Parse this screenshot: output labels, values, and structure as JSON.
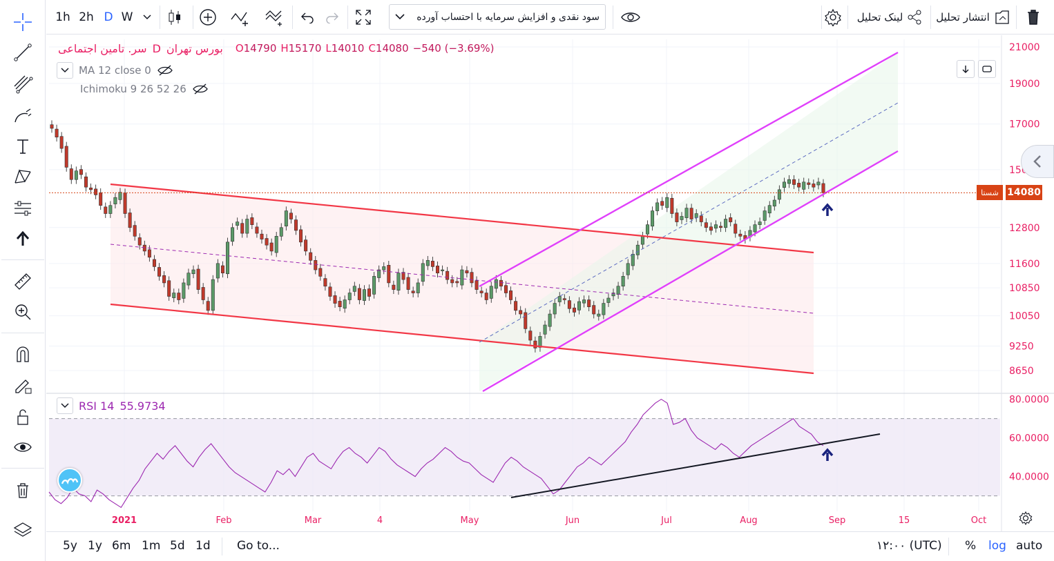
{
  "top_toolbar": {
    "intervals": [
      "1h",
      "2h",
      "D",
      "W"
    ],
    "active_interval": "D",
    "study_select": "سود نقدی و افزایش سرمایه با احتساب آورده",
    "publish": "انتشار تحلیل",
    "share_link": "لینک تحلیل"
  },
  "legend": {
    "symbol": "سر. تامین اجتماعی",
    "interval": "D",
    "exchange": "بورس تهران",
    "open_label": "O",
    "open": "14790",
    "high_label": "H",
    "high": "15170",
    "low_label": "L",
    "low": "14010",
    "close_label": "C",
    "close": "14080",
    "change": "−540 (−3.69%)"
  },
  "indicators": {
    "ma": "MA 12 close 0",
    "ichimoku": "Ichimoku 9 26 52 26",
    "rsi_name": "RSI 14",
    "rsi_value": "55.9734"
  },
  "price_badge": {
    "symbol": "شستا",
    "last": "14080"
  },
  "bottom_toolbar": {
    "ranges": [
      "5y",
      "1y",
      "6m",
      "1m",
      "5d",
      "1d"
    ],
    "goto": "Go to...",
    "timezone": "۱۲:۰۰ (UTC)",
    "percent": "%",
    "log": "log",
    "auto": "auto"
  },
  "colors": {
    "up": "#5b9a68",
    "down": "#c0392b",
    "channel_down": "#f23645",
    "channel_up": "#e040fb",
    "rsi": "#9c27b0",
    "accent": "#2962ff"
  },
  "chart_data": {
    "type": "candlestick",
    "scale": "log",
    "y_ticks": [
      21000,
      19000,
      17000,
      15000,
      12800,
      11600,
      10850,
      10050,
      9250,
      8650
    ],
    "x_ticks": [
      "2021",
      "Feb",
      "Mar",
      "4",
      "May",
      "Jun",
      "Jul",
      "Aug",
      "Sep",
      "15",
      "Oct"
    ],
    "last_price": 14080,
    "candles_close": [
      16800,
      16400,
      15900,
      15100,
      14600,
      14950,
      14800,
      14300,
      14200,
      14000,
      13600,
      13300,
      13600,
      13900,
      14100,
      13300,
      12800,
      12500,
      12200,
      12000,
      11800,
      11500,
      11200,
      11000,
      10600,
      10700,
      10500,
      11000,
      11300,
      11400,
      10800,
      10500,
      10200,
      11100,
      11600,
      11300,
      12300,
      12800,
      13000,
      12600,
      13100,
      12900,
      12600,
      12400,
      12200,
      12000,
      12500,
      12800,
      13400,
      13100,
      12700,
      12300,
      12000,
      11700,
      11400,
      11200,
      10900,
      10600,
      10400,
      10300,
      10500,
      10700,
      10900,
      10500,
      10800,
      10600,
      11200,
      11400,
      11500,
      11000,
      10800,
      11300,
      11100,
      10800,
      10700,
      11000,
      11600,
      11700,
      11500,
      11300,
      11400,
      11100,
      11000,
      11000,
      11400,
      11300,
      11000,
      10800,
      10700,
      10500,
      10900,
      11100,
      10900,
      10700,
      10500,
      10200,
      10100,
      9700,
      9400,
      9200,
      9500,
      9800,
      10100,
      10400,
      10600,
      10500,
      10250,
      10150,
      10450,
      10500,
      10300,
      10100,
      10100,
      10400,
      10550,
      10700,
      10900,
      11200,
      11600,
      11900,
      12200,
      12500,
      12900,
      13400,
      13700,
      13600,
      13900,
      13300,
      13000,
      13200,
      13500,
      13100,
      13300,
      13000,
      12800,
      12700,
      12900,
      12800,
      13100,
      13000,
      12600,
      12500,
      12400,
      12700,
      12900,
      13000,
      13400,
      13600,
      13800,
      14200,
      14500,
      14600,
      14400,
      14300,
      14500,
      14400,
      14300,
      14500,
      14080
    ],
    "rsi": {
      "overbought": 70,
      "oversold": 30,
      "ticks": [
        80,
        60,
        40
      ],
      "values": [
        32,
        28,
        26,
        29,
        34,
        31,
        30,
        27,
        33,
        31,
        28,
        26,
        24,
        29,
        34,
        38,
        44,
        48,
        52,
        49,
        53,
        56,
        52,
        48,
        45,
        50,
        54,
        57,
        53,
        49,
        45,
        42,
        40,
        38,
        36,
        34,
        32,
        37,
        43,
        41,
        44,
        40,
        45,
        50,
        52,
        48,
        46,
        44,
        49,
        53,
        55,
        52,
        50,
        47,
        51,
        55,
        53,
        49,
        46,
        44,
        42,
        40,
        44,
        47,
        49,
        52,
        55,
        53,
        50,
        48,
        47,
        44,
        41,
        39,
        37,
        42,
        47,
        50,
        48,
        45,
        43,
        41,
        39,
        35,
        31,
        33,
        37,
        41,
        45,
        47,
        50,
        48,
        46,
        49,
        52,
        55,
        58,
        63,
        67,
        72,
        75,
        78,
        80,
        78,
        67,
        68,
        70,
        64,
        60,
        58,
        56,
        54,
        57,
        55,
        52,
        50,
        53,
        56,
        58,
        60,
        62,
        64,
        66,
        68,
        70,
        66,
        64,
        62,
        58,
        56
      ]
    },
    "drawings": [
      {
        "type": "parallel_channel",
        "color": "red",
        "direction": "down"
      },
      {
        "type": "parallel_channel",
        "color": "magenta",
        "direction": "up"
      },
      {
        "type": "trend_line",
        "pane": "rsi",
        "color": "black"
      },
      {
        "type": "arrow_up",
        "color": "blue"
      }
    ]
  }
}
